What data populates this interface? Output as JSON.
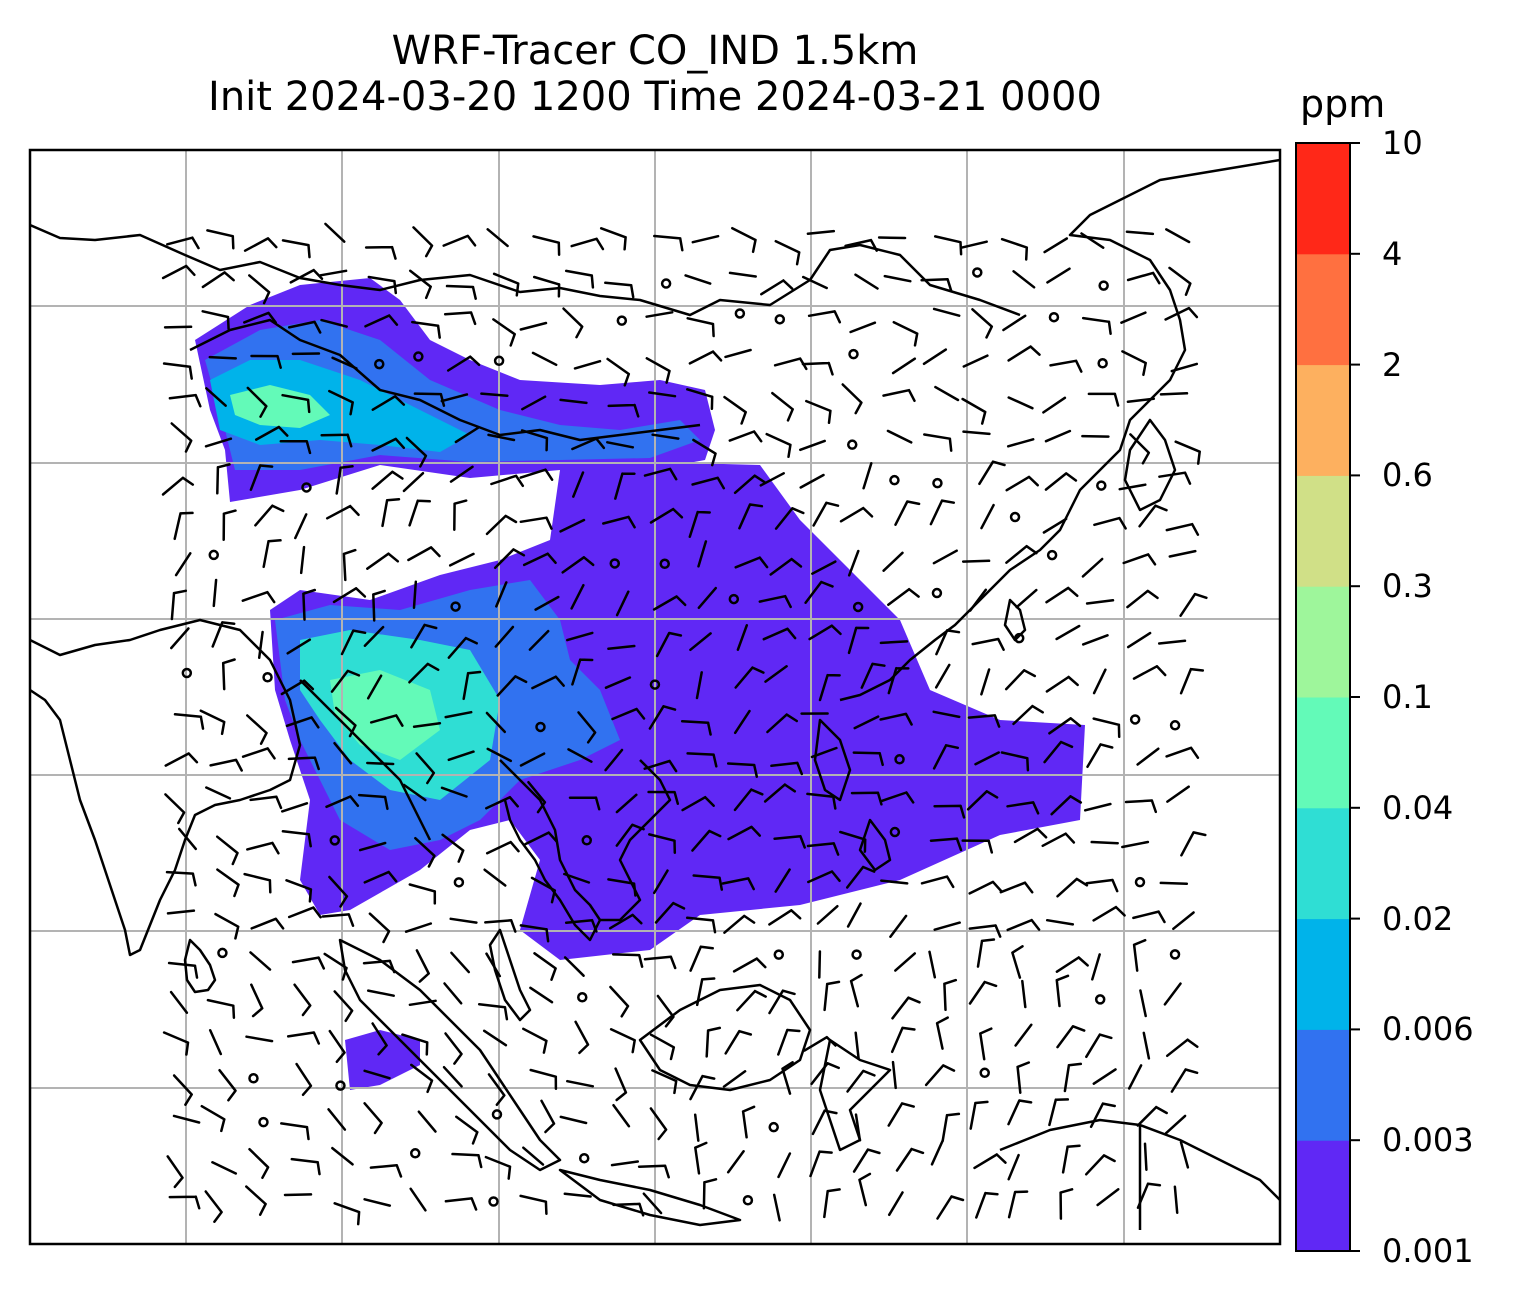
{
  "title": {
    "line1": "WRF-Tracer CO_IND 1.5km",
    "line2": "Init 2024-03-20 1200 Time 2024-03-21 0000"
  },
  "colorbar": {
    "unit": "ppm",
    "levels": [
      "0.001",
      "0.003",
      "0.006",
      "0.02",
      "0.04",
      "0.1",
      "0.3",
      "0.6",
      "2",
      "4",
      "10"
    ],
    "colors": [
      "#6028f5",
      "#3172f0",
      "#00b3ea",
      "#2fded4",
      "#63fab8",
      "#9ef69b",
      "#d0e087",
      "#fdb05f",
      "#ff7040",
      "#ff2818"
    ]
  },
  "map": {
    "gridlines": "on",
    "overlay": "wind-barbs",
    "style": {
      "coast_color": "#000000",
      "grid_color": "#b3b3b3",
      "barb_color": "#000000"
    }
  }
}
